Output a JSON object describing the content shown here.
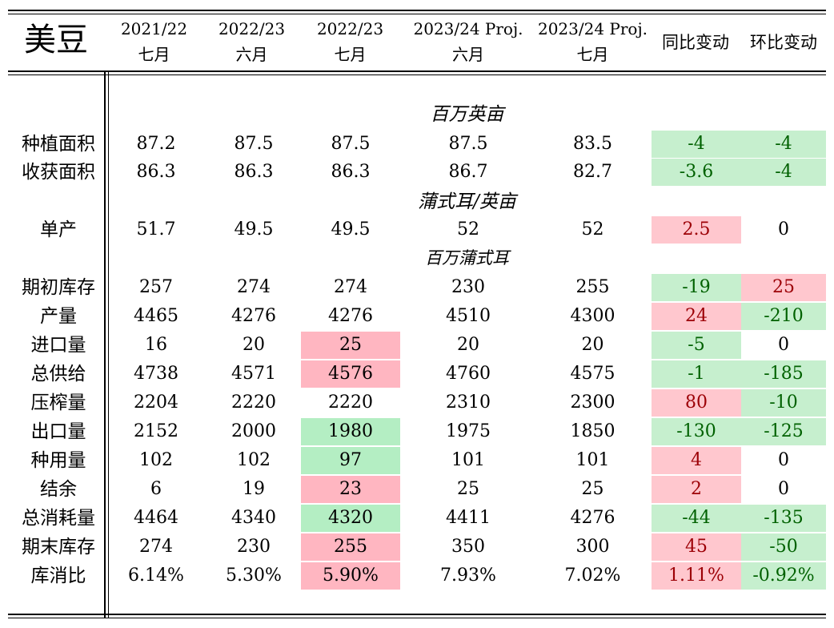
{
  "title": "美豆",
  "headers": [
    {
      "line1": "2021/22",
      "line2": "七月"
    },
    {
      "line1": "2022/23",
      "line2": "六月"
    },
    {
      "line1": "2022/23",
      "line2": "七月"
    },
    {
      "line1": "2023/24 Proj.",
      "line2": "六月"
    },
    {
      "line1": "2023/24 Proj.",
      "line2": "七月"
    },
    {
      "line1": "同比变动",
      "line2": ""
    },
    {
      "line1": "环比变动",
      "line2": ""
    }
  ],
  "units": {
    "area": "百万英亩",
    "yield": "蒲式耳/英亩",
    "volume": "百万蒲式耳"
  },
  "rows": [
    {
      "label": "种植面积",
      "values": [
        "87.2",
        "87.5",
        "87.5",
        "87.5",
        "83.5",
        "-4",
        "-4"
      ]
    },
    {
      "label": "收获面积",
      "values": [
        "86.3",
        "86.3",
        "86.3",
        "86.7",
        "82.7",
        "-3.6",
        "-4"
      ]
    },
    {
      "label": "单产",
      "values": [
        "51.7",
        "49.5",
        "49.5",
        "52",
        "52",
        "2.5",
        "0"
      ]
    },
    {
      "label": "期初库存",
      "values": [
        "257",
        "274",
        "274",
        "230",
        "255",
        "-19",
        "25"
      ]
    },
    {
      "label": "产量",
      "values": [
        "4465",
        "4276",
        "4276",
        "4510",
        "4300",
        "24",
        "-210"
      ]
    },
    {
      "label": "进口量",
      "values": [
        "16",
        "20",
        "25",
        "20",
        "20",
        "-5",
        "0"
      ]
    },
    {
      "label": "总供给",
      "values": [
        "4738",
        "4571",
        "4576",
        "4760",
        "4575",
        "-1",
        "-185"
      ]
    },
    {
      "label": "压榨量",
      "values": [
        "2204",
        "2220",
        "2220",
        "2310",
        "2300",
        "80",
        "-10"
      ]
    },
    {
      "label": "出口量",
      "values": [
        "2152",
        "2000",
        "1980",
        "1975",
        "1850",
        "-130",
        "-125"
      ]
    },
    {
      "label": "种用量",
      "values": [
        "102",
        "102",
        "97",
        "101",
        "101",
        "4",
        "0"
      ]
    },
    {
      "label": "结余",
      "values": [
        "6",
        "19",
        "23",
        "25",
        "25",
        "2",
        "0"
      ]
    },
    {
      "label": "总消耗量",
      "values": [
        "4464",
        "4340",
        "4320",
        "4411",
        "4276",
        "-44",
        "-135"
      ]
    },
    {
      "label": "期末库存",
      "values": [
        "274",
        "230",
        "255",
        "350",
        "300",
        "45",
        "-50"
      ]
    },
    {
      "label": "库消比",
      "values": [
        "6.14%",
        "5.30%",
        "5.90%",
        "7.93%",
        "7.02%",
        "1.11%",
        "-0.92%"
      ]
    }
  ],
  "colors": {
    "positive_bg": "#ffc7ce",
    "positive_text": "#9c0006",
    "negative_bg": "#c6efce",
    "negative_text": "#006100",
    "highlight_pink": "#ffb6c1",
    "highlight_green": "#b4eec3"
  }
}
